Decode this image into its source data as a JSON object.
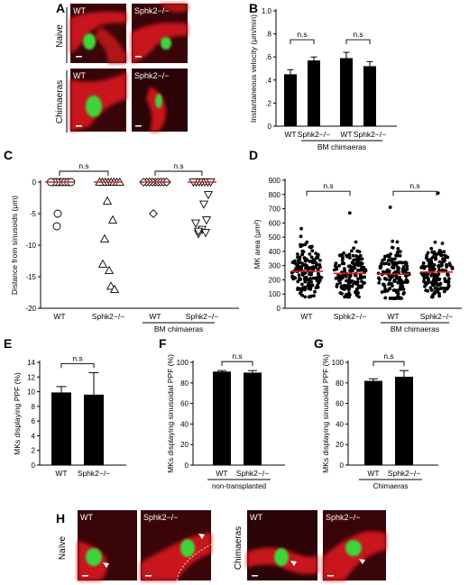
{
  "panel_letters": {
    "A": "A",
    "B": "B",
    "C": "C",
    "D": "D",
    "E": "E",
    "F": "F",
    "G": "G",
    "H": "H"
  },
  "panel_A": {
    "row_labels": [
      "Naive",
      "Chimaeras"
    ],
    "tiles": [
      "WT",
      "Sphk2−/−",
      "WT",
      "Sphk2−/−"
    ]
  },
  "panel_H": {
    "row_labels": [
      "Naïve",
      "Chimaeras"
    ],
    "tiles": [
      "WT",
      "Sphk2−/−",
      "WT",
      "Sphk2−/−"
    ]
  },
  "colors": {
    "bar": "#000000",
    "vessel": "#c8181c",
    "vessel_dark": "#3a0508",
    "megakaryocyte": "#3fd43a",
    "mean_line": "#e02020"
  },
  "chart_data": [
    {
      "id": "B",
      "type": "bar",
      "ylabel": "Instantaneous velocity (μm/min)",
      "ylim": [
        0,
        1.0
      ],
      "yticks": [
        {
          "v": 0,
          "t": "0"
        },
        {
          "v": 0.2,
          "t": ".2"
        },
        {
          "v": 0.4,
          "t": ".4"
        },
        {
          "v": 0.6,
          "t": ".6"
        },
        {
          "v": 0.8,
          "t": ".8"
        },
        {
          "v": 1.0,
          "t": "1.0"
        }
      ],
      "categories": [
        "WT",
        "Sphk2−/−",
        "WT",
        "Sphk2−/−"
      ],
      "values": [
        0.45,
        0.57,
        0.59,
        0.52
      ],
      "errors": [
        0.04,
        0.03,
        0.05,
        0.04
      ],
      "group_label": "BM chimaeras",
      "annotations": [
        "n.s",
        "n.s"
      ]
    },
    {
      "id": "C",
      "type": "scatter",
      "ylabel": "Distance from sinusoids (μm)",
      "ylim": [
        -20,
        0
      ],
      "yticks": [
        {
          "v": 0,
          "t": "0"
        },
        {
          "v": -5,
          "t": "-5"
        },
        {
          "v": -10,
          "t": "-10"
        },
        {
          "v": -15,
          "t": "-15"
        },
        {
          "v": -20,
          "t": "-20"
        }
      ],
      "categories": [
        "WT",
        "Sphk2−/−",
        "WT",
        "Sphk2−/−"
      ],
      "group_label": "BM chimaeras",
      "annotations": [
        "n.s",
        "n.s"
      ],
      "series": [
        {
          "marker": "circle",
          "x_index": 0,
          "y": [
            0,
            0,
            0,
            0,
            0,
            0,
            0,
            0,
            -5,
            -7
          ]
        },
        {
          "marker": "triangle-up",
          "x_index": 1,
          "y": [
            0,
            0,
            0,
            0,
            0,
            0,
            0,
            0,
            -3,
            -6,
            -9,
            -13,
            -14,
            -16.5,
            -17
          ]
        },
        {
          "marker": "diamond",
          "x_index": 2,
          "y": [
            0,
            0,
            0,
            0,
            0,
            0,
            0,
            0,
            0,
            -5
          ]
        },
        {
          "marker": "triangle-down",
          "x_index": 3,
          "y": [
            0,
            0,
            0,
            0,
            0,
            0,
            0,
            -2,
            -3.5,
            -6,
            -6.5,
            -7.5,
            -8,
            -8.2,
            -7.8
          ]
        }
      ],
      "means": [
        0,
        0,
        0,
        0
      ]
    },
    {
      "id": "D",
      "type": "scatter",
      "ylabel": "MK area (μm²)",
      "ylim": [
        0,
        900
      ],
      "yticks": [
        {
          "v": 0,
          "t": "0"
        },
        {
          "v": 100,
          "t": "100"
        },
        {
          "v": 200,
          "t": "200"
        },
        {
          "v": 300,
          "t": "300"
        },
        {
          "v": 400,
          "t": "400"
        },
        {
          "v": 500,
          "t": "500"
        },
        {
          "v": 600,
          "t": "600"
        },
        {
          "v": 700,
          "t": "700"
        },
        {
          "v": 800,
          "t": "800"
        },
        {
          "v": 900,
          "t": "900"
        }
      ],
      "categories": [
        "WT",
        "Sphk2−/−",
        "WT",
        "Sphk2−/−"
      ],
      "group_label": "BM chimaeras",
      "annotations": [
        "n.s",
        "n.s"
      ],
      "means": [
        260,
        245,
        240,
        255
      ],
      "point_range": [
        [
          80,
          560
        ],
        [
          80,
          670
        ],
        [
          70,
          710
        ],
        [
          80,
          810
        ]
      ],
      "points_per_group": 160
    },
    {
      "id": "E",
      "type": "bar",
      "ylabel": "MKs displaying PPF (%)",
      "ylim": [
        0,
        14
      ],
      "yticks": [
        {
          "v": 0,
          "t": "0"
        },
        {
          "v": 2,
          "t": "2"
        },
        {
          "v": 4,
          "t": "4"
        },
        {
          "v": 6,
          "t": "6"
        },
        {
          "v": 8,
          "t": "8"
        },
        {
          "v": 10,
          "t": "10"
        },
        {
          "v": 12,
          "t": "12"
        },
        {
          "v": 14,
          "t": "14"
        }
      ],
      "categories": [
        "WT",
        "Sphk2−/−"
      ],
      "values": [
        9.9,
        9.6
      ],
      "errors": [
        0.8,
        3.0
      ],
      "annotations": [
        "n.s"
      ]
    },
    {
      "id": "F",
      "type": "bar",
      "ylabel": "MKs displaying sinusoidal PPF (%)",
      "ylim": [
        0,
        100
      ],
      "yticks": [
        {
          "v": 0,
          "t": "0"
        },
        {
          "v": 20,
          "t": "20"
        },
        {
          "v": 40,
          "t": "40"
        },
        {
          "v": 60,
          "t": "60"
        },
        {
          "v": 80,
          "t": "80"
        },
        {
          "v": 100,
          "t": "100"
        }
      ],
      "categories": [
        "WT",
        "Sphk2−/−"
      ],
      "values": [
        91,
        90
      ],
      "errors": [
        1.0,
        2.0
      ],
      "group_label": "non-transplanted",
      "annotations": [
        "n.s"
      ]
    },
    {
      "id": "G",
      "type": "bar",
      "ylabel": "MKs displaying sinusoidal PPF (%)",
      "ylim": [
        0,
        100
      ],
      "yticks": [
        {
          "v": 0,
          "t": "0"
        },
        {
          "v": 20,
          "t": "20"
        },
        {
          "v": 40,
          "t": "40"
        },
        {
          "v": 60,
          "t": "60"
        },
        {
          "v": 80,
          "t": "80"
        },
        {
          "v": 100,
          "t": "100"
        }
      ],
      "categories": [
        "WT",
        "Sphk2−/−"
      ],
      "values": [
        82,
        86
      ],
      "errors": [
        2.0,
        6.0
      ],
      "group_label": "Chimaeras",
      "annotations": [
        "n.s"
      ]
    }
  ]
}
